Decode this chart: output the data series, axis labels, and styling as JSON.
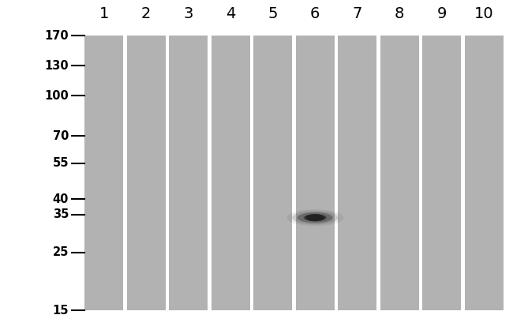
{
  "background_color": "#ffffff",
  "lane_color": "#b2b2b2",
  "separator_color": "#ffffff",
  "band_color": "#222222",
  "num_lanes": 10,
  "lane_labels": [
    "1",
    "2",
    "3",
    "4",
    "5",
    "6",
    "7",
    "8",
    "9",
    "10"
  ],
  "mw_markers": [
    170,
    130,
    100,
    70,
    55,
    40,
    35,
    25,
    15
  ],
  "band_lane": 6,
  "band_mw": 34,
  "fig_width": 6.5,
  "fig_height": 4.18,
  "dpi": 100,
  "tick_label_fontsize": 10.5,
  "lane_label_fontsize": 14
}
